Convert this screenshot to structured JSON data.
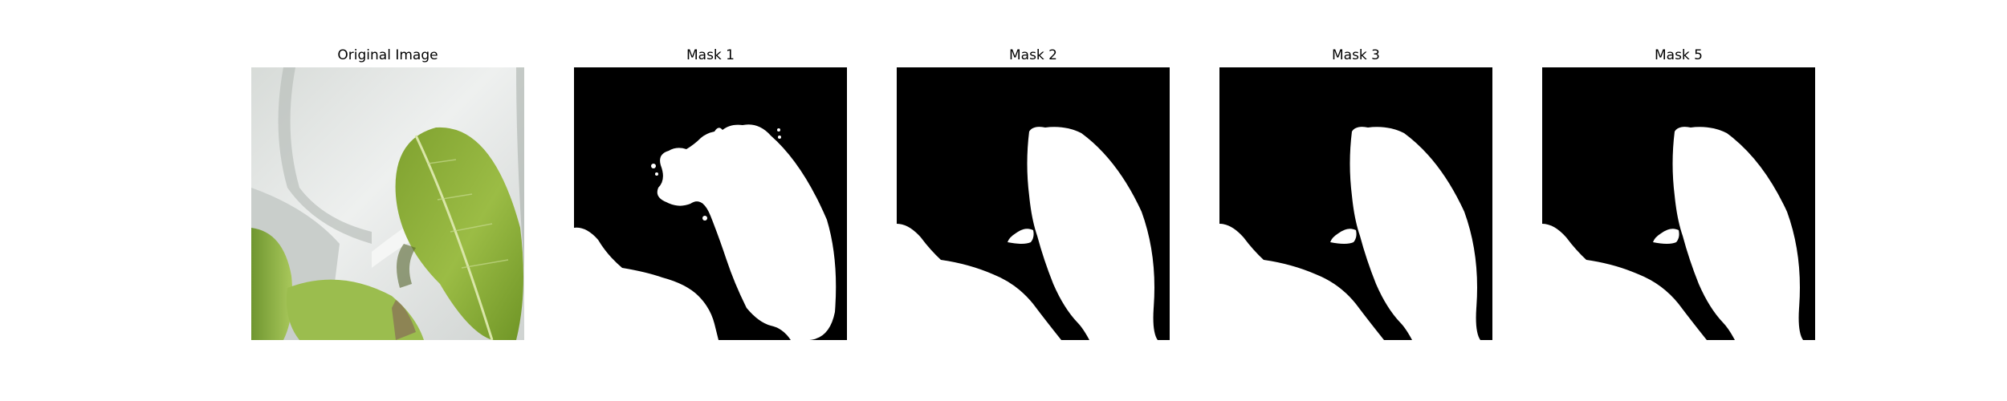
{
  "panels": [
    {
      "title": "Original Image"
    },
    {
      "title": "Mask 1"
    },
    {
      "title": "Mask 2"
    },
    {
      "title": "Mask 3"
    },
    {
      "title": "Mask 5"
    }
  ],
  "colors": {
    "background": "#ffffff",
    "mask_background": "#000000",
    "mask_foreground": "#ffffff",
    "leaf_green": "#8fb23a",
    "leaf_dark": "#5e8a24",
    "container_white": "#e8ecea"
  }
}
